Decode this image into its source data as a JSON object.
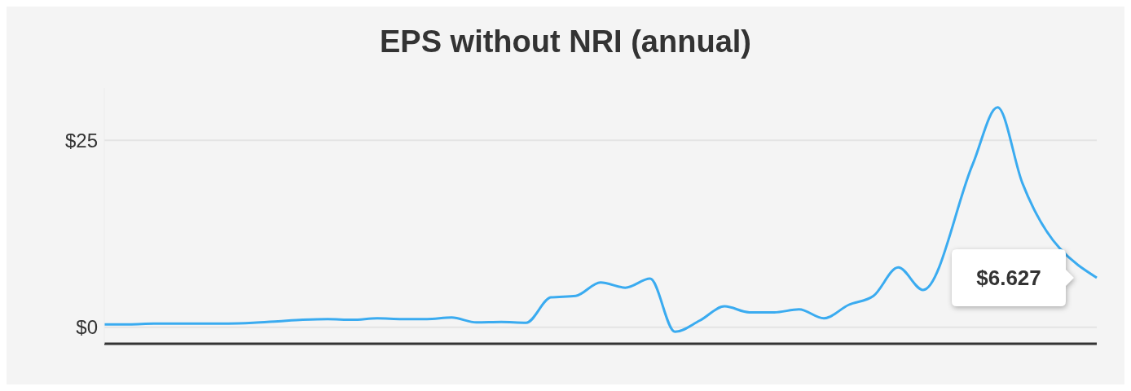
{
  "chart_data": {
    "type": "line",
    "title": "EPS without NRI (annual)",
    "categories": [
      null,
      null,
      null,
      null,
      null,
      null,
      null,
      null,
      null,
      null,
      null,
      null,
      null,
      null,
      null,
      null,
      null,
      null,
      null,
      null,
      null,
      null,
      null,
      null,
      null,
      null,
      null,
      null,
      null,
      null,
      null,
      null,
      null,
      null,
      null,
      null,
      null,
      null,
      null,
      null,
      null
    ],
    "series": [
      {
        "color": "#3aabf0",
        "values": [
          0.4,
          0.4,
          0.5,
          0.5,
          0.5,
          0.5,
          0.6,
          0.8,
          1.0,
          1.1,
          1.0,
          1.2,
          1.1,
          1.1,
          1.3,
          0.65,
          0.7,
          0.6,
          4.0,
          4.2,
          6.0,
          5.3,
          6.5,
          -0.6,
          0.9,
          2.8,
          2.0,
          2.0,
          2.4,
          1.2,
          3.0,
          4.2,
          8.0,
          5.0,
          null,
          21.8,
          29.4,
          19.3,
          null,
          null,
          6.627
        ]
      }
    ],
    "ylim": [
      -2.2,
      32
    ],
    "yticks": [
      {
        "value": 0,
        "label": "$0"
      },
      {
        "value": 25,
        "label": "$25"
      }
    ],
    "grid": "y",
    "legend": false,
    "marker": "none",
    "line_style": "solid",
    "annotations": [
      "$6.627"
    ]
  }
}
